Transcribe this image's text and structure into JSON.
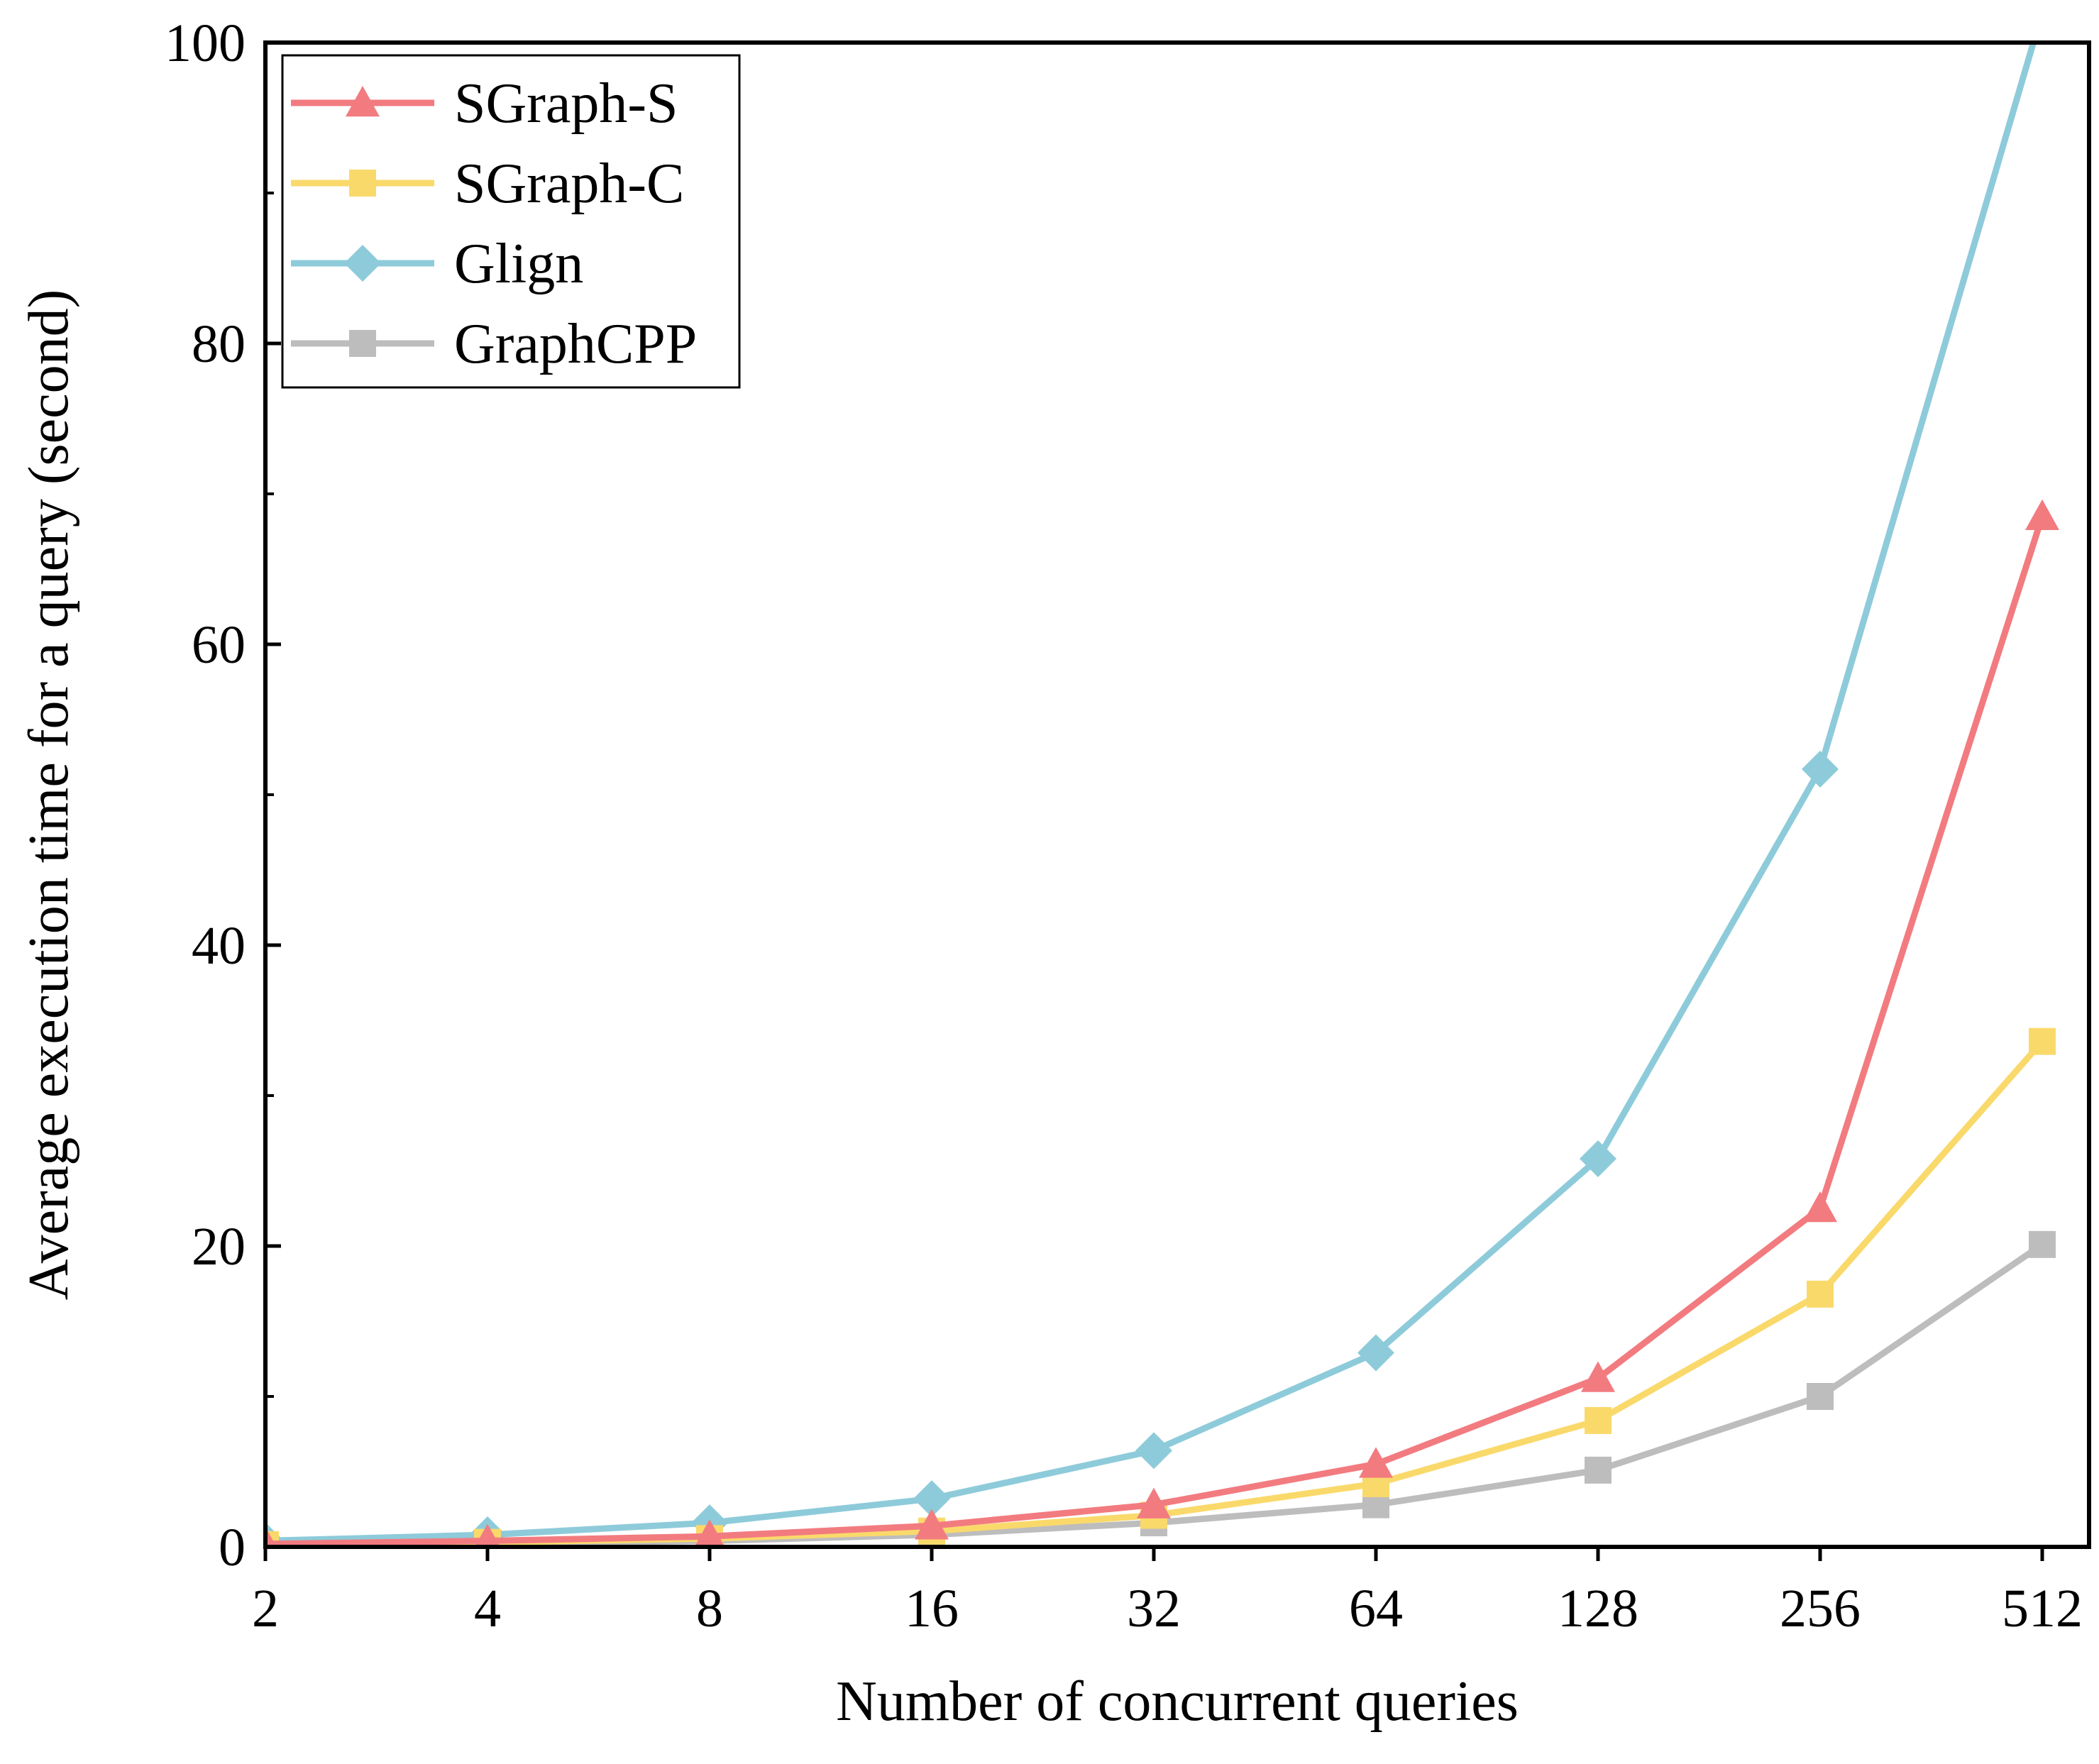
{
  "chart_data": {
    "type": "line",
    "xlabel": "Number of concurrent queries",
    "ylabel": "Average execution time for a query (second)",
    "x_scale": "log2",
    "categories": [
      "2",
      "4",
      "8",
      "16",
      "32",
      "64",
      "128",
      "256",
      "512"
    ],
    "x": [
      2,
      4,
      8,
      16,
      32,
      64,
      128,
      256,
      512
    ],
    "ylim": [
      0,
      100
    ],
    "yticks": [
      0,
      20,
      40,
      60,
      80,
      100
    ],
    "legend_position": "top-left",
    "grid": false,
    "series": [
      {
        "name": "SGraph-S",
        "color": "#f27b80",
        "marker": "triangle",
        "values": [
          0.2,
          0.4,
          0.7,
          1.4,
          2.8,
          5.5,
          11.2,
          22.5,
          68.5
        ]
      },
      {
        "name": "SGraph-C",
        "color": "#fad96b",
        "marker": "square",
        "values": [
          0.15,
          0.3,
          0.55,
          1.05,
          2.1,
          4.2,
          8.4,
          16.8,
          33.6
        ]
      },
      {
        "name": "Glign",
        "color": "#8ecbda",
        "marker": "diamond",
        "values": [
          0.4,
          0.8,
          1.6,
          3.2,
          6.4,
          12.9,
          25.8,
          51.7,
          102
        ]
      },
      {
        "name": "GraphCPP",
        "color": "#bdbdbd",
        "marker": "square",
        "values": [
          0.1,
          0.2,
          0.4,
          0.8,
          1.6,
          2.8,
          5.1,
          10.0,
          20.1
        ]
      }
    ]
  }
}
